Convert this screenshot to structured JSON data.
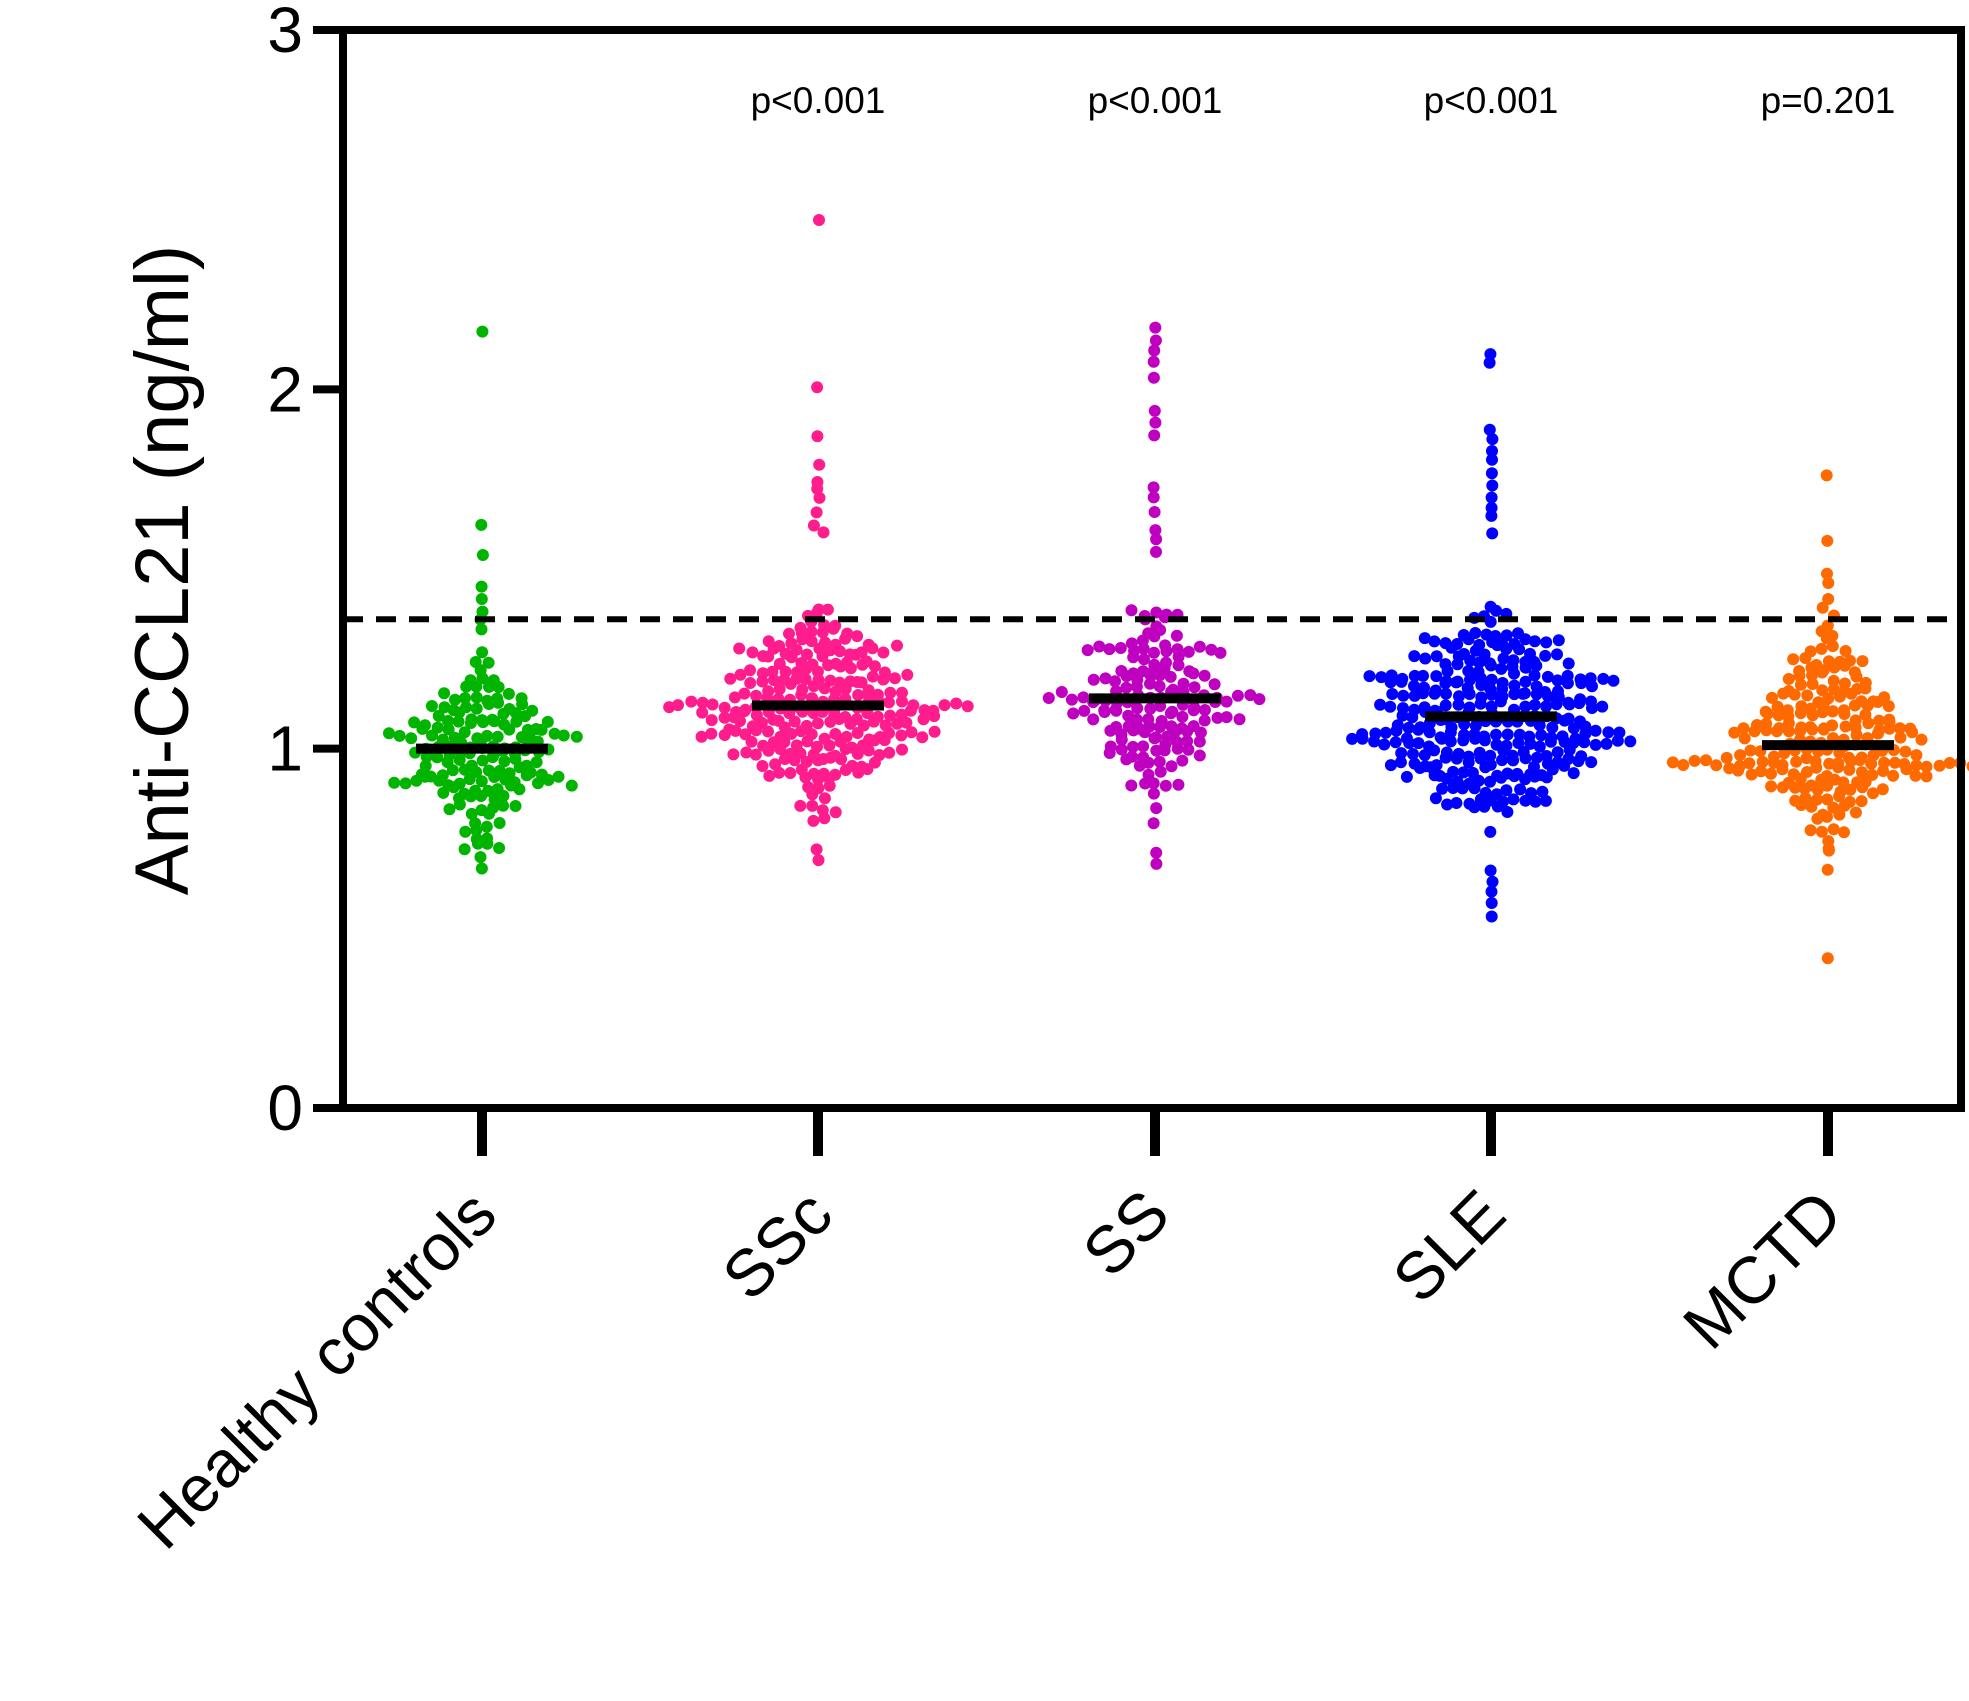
{
  "chart_data": {
    "type": "scatter",
    "subtype": "dot-plot-with-median",
    "title": "",
    "ylabel": "Anti-CCL21 (ng/ml)",
    "xlabel": "",
    "ylim": [
      0,
      3
    ],
    "yticks": [
      0,
      1,
      2,
      3
    ],
    "ytick_labels": [
      "0",
      "1",
      "2",
      "3"
    ],
    "cutoff": 1.36,
    "grid": false,
    "groups": [
      {
        "name": "Healthy controls",
        "color": "#00b400",
        "median": 1.0,
        "p_value": "",
        "n": 175,
        "min": 0.67,
        "max": 2.16,
        "outliers": [
          2.16,
          1.62,
          1.54,
          1.45,
          1.42,
          1.38,
          1.36,
          0.67,
          0.7,
          0.72
        ]
      },
      {
        "name": "SSc",
        "color": "#ff1c8c",
        "median": 1.12,
        "p_value": "p<0.001",
        "n": 270,
        "min": 0.69,
        "max": 2.47,
        "outliers": [
          2.47,
          2.01,
          1.87,
          1.79,
          1.74,
          1.72,
          1.7,
          1.66,
          1.62,
          1.6,
          0.69,
          0.72
        ]
      },
      {
        "name": "SS",
        "color": "#c000c0",
        "median": 1.14,
        "p_value": "p<0.001",
        "n": 175,
        "min": 0.68,
        "max": 2.17,
        "outliers": [
          2.17,
          2.14,
          2.11,
          2.08,
          2.03,
          1.94,
          1.91,
          1.87,
          1.73,
          1.7,
          1.66,
          1.61,
          1.58,
          1.55,
          0.68,
          0.71
        ]
      },
      {
        "name": "SLE",
        "color": "#0000ff",
        "median": 1.09,
        "p_value": "p<0.001",
        "n": 330,
        "min": 0.53,
        "max": 2.1,
        "outliers": [
          2.1,
          2.07,
          1.89,
          1.86,
          1.83,
          1.8,
          1.77,
          1.73,
          1.7,
          1.67,
          1.65,
          1.6,
          0.53,
          0.57,
          0.6,
          0.63,
          0.66
        ]
      },
      {
        "name": "MCTD",
        "color": "#ff6a00",
        "median": 1.01,
        "p_value": "p=0.201",
        "n": 230,
        "min": 0.42,
        "max": 1.76,
        "outliers": [
          1.76,
          1.58,
          1.49,
          1.46,
          1.42,
          0.42,
          0.72
        ]
      }
    ]
  }
}
